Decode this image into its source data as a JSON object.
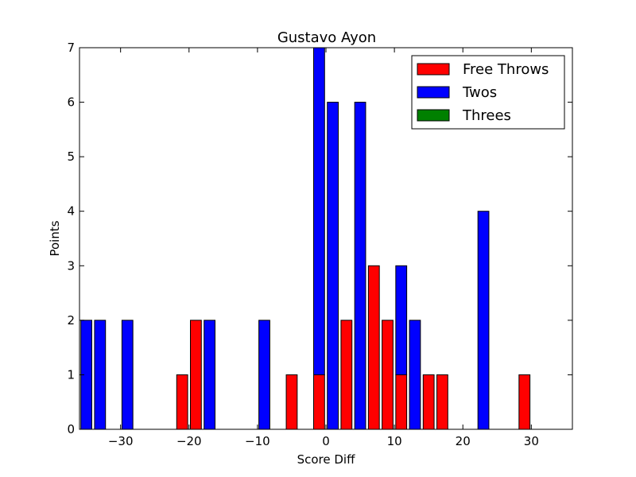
{
  "chart_data": {
    "type": "bar",
    "title": "Gustavo Ayon",
    "xlabel": "Score Diff",
    "ylabel": "Points",
    "xlim": [
      -36,
      36
    ],
    "ylim": [
      0,
      7
    ],
    "xticks": [
      -30,
      -20,
      -10,
      0,
      10,
      20,
      30
    ],
    "xtick_labels": [
      "−30",
      "−20",
      "−10",
      "0",
      "10",
      "20",
      "30"
    ],
    "yticks": [
      0,
      1,
      2,
      3,
      4,
      5,
      6,
      7
    ],
    "ytick_labels": [
      "0",
      "1",
      "2",
      "3",
      "4",
      "5",
      "6",
      "7"
    ],
    "bar_width": 1.6,
    "x": [
      -35,
      -33,
      -31,
      -29,
      -27,
      -25,
      -23,
      -21,
      -19,
      -17,
      -15,
      -13,
      -11,
      -9,
      -7,
      -5,
      -3,
      -1,
      1,
      3,
      5,
      7,
      9,
      11,
      13,
      15,
      17,
      19,
      21,
      23,
      25,
      27,
      29,
      31,
      33,
      35
    ],
    "grid": false,
    "legend_position": "top-right",
    "series": [
      {
        "name": "Free Throws",
        "color": "#ff0000",
        "values": [
          0,
          0,
          0,
          0,
          0,
          0,
          0,
          1,
          2,
          0,
          0,
          0,
          0,
          0,
          0,
          1,
          0,
          1,
          0,
          2,
          0,
          3,
          2,
          1,
          0,
          1,
          1,
          0,
          0,
          0,
          0,
          0,
          1,
          0,
          0,
          0
        ]
      },
      {
        "name": "Twos",
        "color": "#0000ff",
        "values": [
          2,
          2,
          0,
          2,
          0,
          0,
          0,
          0,
          0,
          2,
          0,
          0,
          0,
          2,
          0,
          0,
          0,
          6,
          6,
          0,
          6,
          0,
          0,
          2,
          2,
          0,
          0,
          0,
          0,
          4,
          0,
          0,
          0,
          0,
          0,
          0
        ]
      },
      {
        "name": "Threes",
        "color": "#008000",
        "values": [
          0,
          0,
          0,
          0,
          0,
          0,
          0,
          0,
          0,
          0,
          0,
          0,
          0,
          0,
          0,
          0,
          0,
          0,
          0,
          0,
          0,
          0,
          0,
          0,
          0,
          0,
          0,
          0,
          0,
          0,
          0,
          0,
          0,
          0,
          0,
          0
        ]
      }
    ]
  }
}
